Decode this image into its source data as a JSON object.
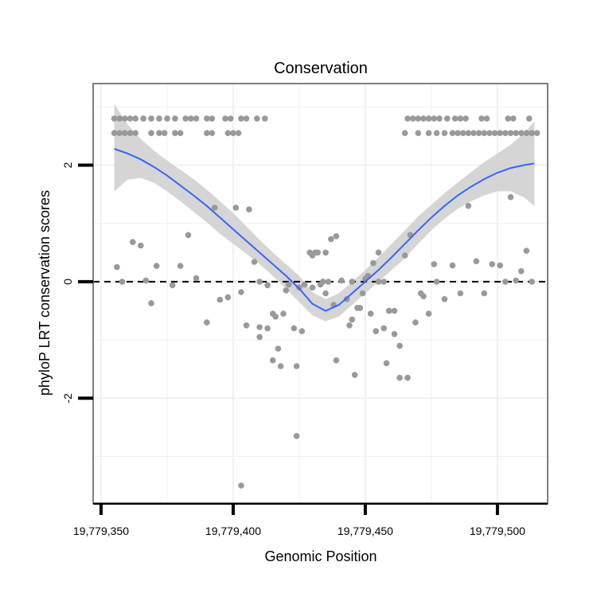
{
  "chart_data": {
    "type": "scatter",
    "title": "Conservation",
    "xlabel": "Genomic Position",
    "ylabel": "phyloP LRT conservation scores",
    "xlim": [
      19779347,
      19779519
    ],
    "ylim": [
      -3.8,
      3.4
    ],
    "x_ticks": [
      {
        "value": 19779350,
        "label": "19,779,350"
      },
      {
        "value": 19779400,
        "label": "19,779,400"
      },
      {
        "value": 19779450,
        "label": "19,779,450"
      },
      {
        "value": 19779500,
        "label": "19,779,500"
      }
    ],
    "y_ticks": [
      {
        "value": -2,
        "label": "-2"
      },
      {
        "value": 0,
        "label": "0"
      },
      {
        "value": 2,
        "label": "2"
      }
    ],
    "x_minor_grid": [
      19779375,
      19779425,
      19779475
    ],
    "y_minor_grid": [
      -3,
      -1,
      1,
      3
    ],
    "reference_line": {
      "y": 0,
      "style": "dashed"
    },
    "colors": {
      "points": "#999999",
      "smooth": "#3366ff",
      "band": "#d3d3d3",
      "grid": "#f0f0f0",
      "frame": "#7f7f7f",
      "reference": "#000000"
    },
    "series": [
      {
        "name": "phyloP",
        "kind": "points",
        "x": [
          19779355,
          19779357,
          19779359,
          19779361,
          19779363,
          19779366,
          19779369,
          19779372,
          19779375,
          19779378,
          19779382,
          19779384,
          19779386,
          19779390,
          19779392,
          19779397,
          19779399,
          19779403,
          19779405,
          19779409,
          19779412,
          19779355,
          19779357,
          19779359,
          19779361,
          19779363,
          19779369,
          19779372,
          19779374,
          19779378,
          19779380,
          19779390,
          19779392,
          19779398,
          19779400,
          19779402,
          19779466,
          19779468,
          19779470,
          19779472,
          19779474,
          19779476,
          19779478,
          19779481,
          19779484,
          19779486,
          19779488,
          19779494,
          19779496,
          19779504,
          19779506,
          19779512,
          19779465,
          19779470,
          19779474,
          19779477,
          19779480,
          19779483,
          19779485,
          19779487,
          19779489,
          19779491,
          19779493,
          19779495,
          19779497,
          19779499,
          19779501,
          19779503,
          19779505,
          19779507,
          19779509,
          19779511,
          19779513,
          19779515,
          19779356,
          19779358,
          19779362,
          19779365,
          19779367,
          19779369,
          19779371,
          19779377,
          19779380,
          19779383,
          19779386,
          19779390,
          19779393,
          19779395,
          19779398,
          19779401,
          19779403,
          19779406,
          19779408,
          19779410,
          19779413,
          19779415,
          19779417,
          19779419,
          19779421,
          19779423,
          19779425,
          19779427,
          19779429,
          19779431,
          19779433,
          19779435,
          19779437,
          19779439,
          19779441,
          19779443,
          19779445,
          19779447,
          19779449,
          19779451,
          19779453,
          19779455,
          19779457,
          19779459,
          19779461,
          19779463,
          19779465,
          19779467,
          19779469,
          19779472,
          19779474,
          19779477,
          19779480,
          19779483,
          19779486,
          19779489,
          19779492,
          19779495,
          19779498,
          19779501,
          19779503,
          19779505,
          19779507,
          19779509,
          19779511,
          19779513,
          19779405,
          19779410,
          19779413,
          19779416,
          19779418,
          19779420,
          19779424,
          19779426,
          19779430,
          19779438,
          19779445,
          19779448,
          19779450,
          19779452,
          19779454,
          19779458,
          19779461,
          19779463,
          19779466,
          19779471,
          19779476,
          19779415,
          19779424,
          19779439,
          19779446,
          19779459,
          19779403,
          19779410,
          19779430,
          19779432,
          19779434,
          19779436,
          19779455,
          19779457,
          19779444,
          19779435
        ],
        "y": [
          2.8,
          2.8,
          2.8,
          2.8,
          2.8,
          2.8,
          2.8,
          2.8,
          2.8,
          2.8,
          2.8,
          2.8,
          2.8,
          2.8,
          2.8,
          2.8,
          2.8,
          2.8,
          2.8,
          2.8,
          2.8,
          2.55,
          2.55,
          2.55,
          2.55,
          2.55,
          2.55,
          2.55,
          2.55,
          2.55,
          2.55,
          2.55,
          2.55,
          2.55,
          2.55,
          2.55,
          2.8,
          2.8,
          2.8,
          2.8,
          2.8,
          2.8,
          2.8,
          2.8,
          2.8,
          2.8,
          2.8,
          2.8,
          2.8,
          2.8,
          2.8,
          2.8,
          2.55,
          2.55,
          2.55,
          2.55,
          2.55,
          2.55,
          2.55,
          2.55,
          2.55,
          2.55,
          2.55,
          2.55,
          2.55,
          2.55,
          2.55,
          2.55,
          2.55,
          2.55,
          2.55,
          2.55,
          2.55,
          2.55,
          0.25,
          0.0,
          0.68,
          0.62,
          0.02,
          -0.37,
          0.27,
          -0.06,
          0.27,
          0.8,
          0.06,
          -0.7,
          1.27,
          -0.31,
          -0.27,
          1.27,
          -0.18,
          1.24,
          0.34,
          -0.78,
          -0.06,
          -0.55,
          -1.15,
          -0.55,
          -0.05,
          -0.8,
          -0.1,
          -0.05,
          0.5,
          0.5,
          -0.05,
          -0.2,
          0.73,
          0.78,
          0.02,
          -0.3,
          0.0,
          -0.45,
          -0.2,
          0.1,
          0.32,
          0.5,
          -0.8,
          -0.5,
          -0.5,
          -1.1,
          0.45,
          0.8,
          -0.7,
          -0.25,
          -0.55,
          0.0,
          -0.3,
          0.28,
          -0.2,
          1.3,
          0.35,
          -0.2,
          0.3,
          0.28,
          0.0,
          1.45,
          0.02,
          0.18,
          0.53,
          0.0,
          -0.75,
          -0.95,
          -0.8,
          -0.6,
          -1.45,
          -0.15,
          -1.45,
          -0.85,
          -0.1,
          -0.4,
          -0.65,
          -0.45,
          0.05,
          -0.55,
          -0.85,
          -1.4,
          -0.9,
          -1.65,
          -1.65,
          -0.2,
          0.3,
          -1.35,
          -2.65,
          -1.35,
          -1.6,
          -0.5,
          -3.5,
          0.0,
          0.45,
          0.5,
          0.0,
          0.0,
          0.0,
          0.0,
          -0.75,
          0.5
        ]
      },
      {
        "name": "loess fit",
        "kind": "line",
        "x": [
          19779355,
          19779360,
          19779365,
          19779370,
          19779375,
          19779380,
          19779385,
          19779390,
          19779395,
          19779400,
          19779405,
          19779410,
          19779415,
          19779420,
          19779425,
          19779430,
          19779435,
          19779440,
          19779445,
          19779450,
          19779455,
          19779460,
          19779465,
          19779470,
          19779475,
          19779480,
          19779485,
          19779490,
          19779495,
          19779500,
          19779505,
          19779510,
          19779514
        ],
        "y": [
          2.28,
          2.2,
          2.1,
          1.97,
          1.82,
          1.65,
          1.48,
          1.3,
          1.1,
          0.9,
          0.7,
          0.5,
          0.3,
          0.1,
          -0.12,
          -0.38,
          -0.5,
          -0.4,
          -0.2,
          0.0,
          0.2,
          0.42,
          0.65,
          0.88,
          1.1,
          1.3,
          1.48,
          1.63,
          1.76,
          1.87,
          1.95,
          2.0,
          2.03
        ],
        "lower": [
          1.55,
          1.75,
          1.78,
          1.7,
          1.55,
          1.38,
          1.2,
          1.02,
          0.82,
          0.65,
          0.48,
          0.3,
          0.1,
          -0.12,
          -0.35,
          -0.58,
          -0.68,
          -0.6,
          -0.4,
          -0.2,
          0.0,
          0.2,
          0.4,
          0.65,
          0.88,
          1.08,
          1.25,
          1.38,
          1.48,
          1.55,
          1.55,
          1.45,
          1.3
        ],
        "upper": [
          3.05,
          2.7,
          2.45,
          2.25,
          2.08,
          1.92,
          1.76,
          1.58,
          1.38,
          1.18,
          0.95,
          0.72,
          0.5,
          0.3,
          0.1,
          -0.18,
          -0.3,
          -0.2,
          -0.0,
          0.2,
          0.42,
          0.65,
          0.88,
          1.12,
          1.32,
          1.52,
          1.7,
          1.88,
          2.05,
          2.2,
          2.35,
          2.55,
          2.75
        ]
      }
    ]
  }
}
